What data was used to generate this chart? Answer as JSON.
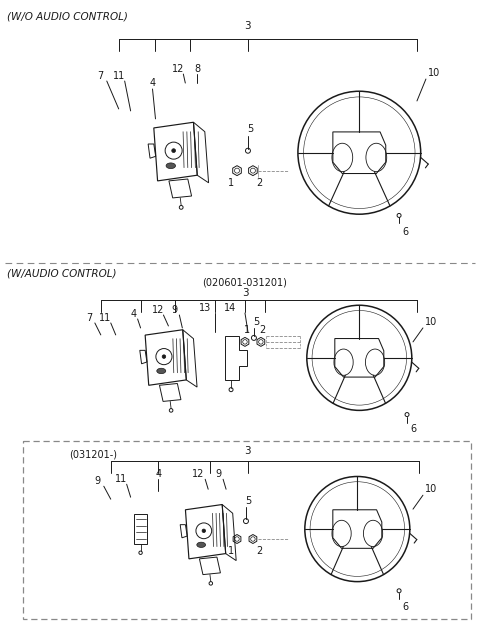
{
  "background_color": "#ffffff",
  "line_color": "#1a1a1a",
  "text_color": "#1a1a1a",
  "dash_color": "#888888",
  "section1_label": "(W/O AUDIO CONTROL)",
  "section2_label": "(W/AUDIO CONTROL)",
  "section2_sublabel": "(020601-031201)",
  "section3_sublabel": "(031201-)",
  "fig_width": 4.8,
  "fig_height": 6.3,
  "dpi": 100
}
